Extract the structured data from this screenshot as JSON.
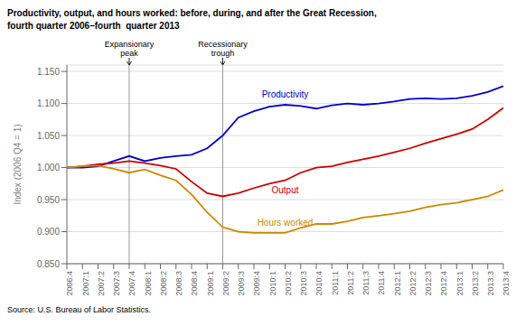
{
  "chart_data": {
    "type": "line",
    "title": "Productivity, output, and hours worked: before, during, and after the Great Recession,\nfourth quarter 2006–fourth  quarter 2013",
    "y_label": "Index (2006 Q4 = 1)",
    "source": "Source: U.S. Bureau of Labor Statistics.",
    "categories": [
      "2006:4",
      "2007:1",
      "2007:2",
      "2007:3",
      "2007:4",
      "2008:1",
      "2008:2",
      "2008:3",
      "2008:4",
      "2009:1",
      "2009:2",
      "2009:3",
      "2009:4",
      "2010:1",
      "2010:2",
      "2010:3",
      "2010:4",
      "2011:1",
      "2011:2",
      "2011:3",
      "2011:4",
      "2012:1",
      "2012:2",
      "2012:3",
      "2012:4",
      "2013:1",
      "2013:2",
      "2013:3",
      "2013:4"
    ],
    "series": [
      {
        "name": "Productivity",
        "color": "#0000CC",
        "values": [
          1.0,
          1.0,
          1.002,
          1.01,
          1.018,
          1.01,
          1.015,
          1.018,
          1.02,
          1.03,
          1.05,
          1.078,
          1.088,
          1.095,
          1.098,
          1.096,
          1.092,
          1.097,
          1.1,
          1.098,
          1.1,
          1.103,
          1.107,
          1.108,
          1.107,
          1.108,
          1.112,
          1.118,
          1.127
        ]
      },
      {
        "name": "Output",
        "color": "#CC0000",
        "values": [
          1.0,
          1.002,
          1.005,
          1.007,
          1.01,
          1.007,
          1.003,
          0.998,
          0.978,
          0.96,
          0.955,
          0.96,
          0.968,
          0.975,
          0.98,
          0.992,
          1.0,
          1.002,
          1.008,
          1.013,
          1.018,
          1.024,
          1.03,
          1.038,
          1.045,
          1.052,
          1.06,
          1.075,
          1.093
        ]
      },
      {
        "name": "Hours worked",
        "color": "#CC8800",
        "values": [
          1.0,
          1.002,
          1.003,
          0.998,
          0.992,
          0.997,
          0.988,
          0.98,
          0.958,
          0.93,
          0.907,
          0.9,
          0.898,
          0.898,
          0.898,
          0.906,
          0.912,
          0.912,
          0.916,
          0.922,
          0.925,
          0.928,
          0.932,
          0.938,
          0.942,
          0.945,
          0.95,
          0.955,
          0.965
        ]
      }
    ],
    "ylim": [
      0.85,
      1.16
    ],
    "yticks": [
      {
        "value": 0.85,
        "label": "0.850"
      },
      {
        "value": 0.9,
        "label": "0.900"
      },
      {
        "value": 0.95,
        "label": "0.950"
      },
      {
        "value": 1.0,
        "label": "1.000"
      },
      {
        "value": 1.05,
        "label": "1.050"
      },
      {
        "value": 1.1,
        "label": "1.100"
      },
      {
        "value": 1.15,
        "label": "1.150"
      }
    ],
    "grid": true,
    "annotations": [
      {
        "text": "Expansionary\npeak",
        "x": "2007:4"
      },
      {
        "text": "Recessionary\ntrough",
        "x": "2009:2"
      }
    ]
  }
}
